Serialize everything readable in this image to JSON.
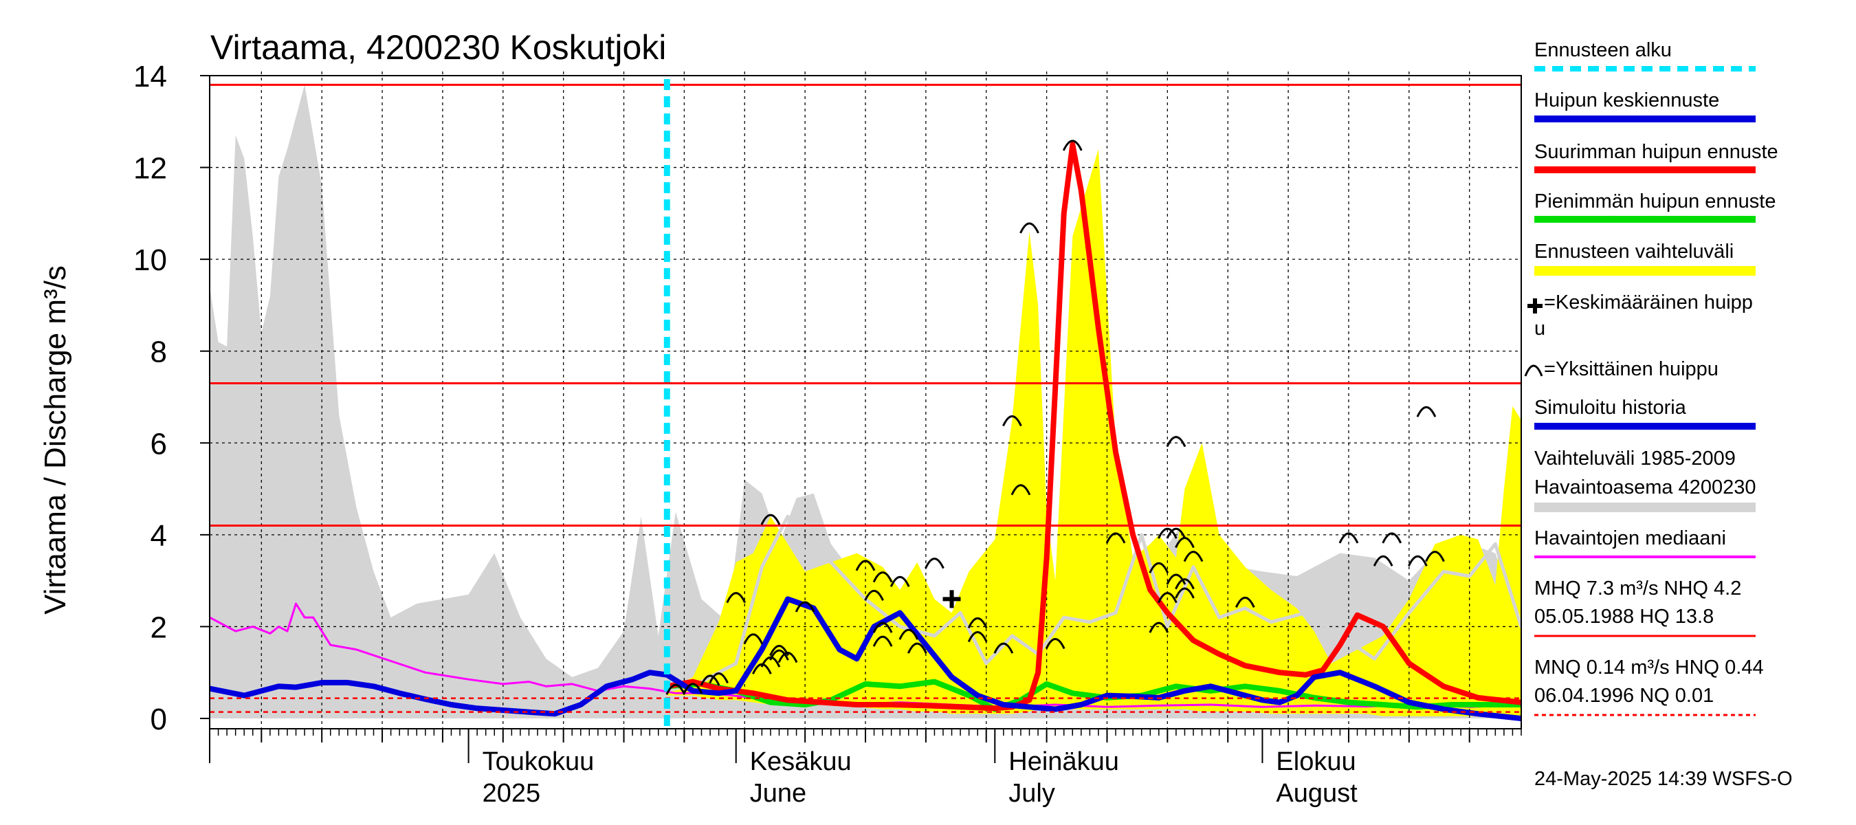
{
  "chart_data": {
    "type": "area",
    "title": "Virtaama, 4200230 Koskutjoki",
    "ylabel": "Virtaama / Discharge   m³/s",
    "ylim": [
      0,
      14
    ],
    "yticks": [
      "0",
      "2",
      "4",
      "6",
      "8",
      "10",
      "12",
      "14"
    ],
    "x_start": "2025-04-01",
    "x_end": "2025-08-31",
    "month_labels": [
      {
        "fi": "Toukokuu",
        "en": "2025",
        "date": "2025-05-01"
      },
      {
        "fi": "Kesäkuu",
        "en": "June",
        "date": "2025-06-01"
      },
      {
        "fi": "Heinäkuu",
        "en": "July",
        "date": "2025-07-01"
      },
      {
        "fi": "Elokuu",
        "en": "August",
        "date": "2025-08-01"
      }
    ],
    "forecast_start": "2025-05-24",
    "reference_lines": [
      {
        "name": "HQ",
        "value": 13.8,
        "style": "solid"
      },
      {
        "name": "MHQ",
        "value": 7.3,
        "style": "solid"
      },
      {
        "name": "NHQ",
        "value": 4.2,
        "style": "solid"
      },
      {
        "name": "HNQ",
        "value": 0.44,
        "style": "dashed"
      },
      {
        "name": "MNQ",
        "value": 0.14,
        "style": "dashed"
      }
    ],
    "series": [
      {
        "name": "Vaihteluväli 1985-2009",
        "kind": "band",
        "color": "#d4d4d4",
        "x": [
          "2025-04-01",
          "2025-04-02",
          "2025-04-03",
          "2025-04-04",
          "2025-04-05",
          "2025-04-06",
          "2025-04-07",
          "2025-04-08",
          "2025-04-09",
          "2025-04-10",
          "2025-04-12",
          "2025-04-14",
          "2025-04-16",
          "2025-04-18",
          "2025-04-20",
          "2025-04-22",
          "2025-04-25",
          "2025-04-28",
          "2025-05-01",
          "2025-05-04",
          "2025-05-07",
          "2025-05-10",
          "2025-05-13",
          "2025-05-16",
          "2025-05-19",
          "2025-05-21",
          "2025-05-23",
          "2025-05-25",
          "2025-05-28",
          "2025-05-31",
          "2025-06-02",
          "2025-06-04",
          "2025-06-06",
          "2025-06-08",
          "2025-06-10",
          "2025-06-12",
          "2025-06-14",
          "2025-06-17",
          "2025-06-20",
          "2025-06-23",
          "2025-06-26",
          "2025-06-29",
          "2025-07-02",
          "2025-07-05",
          "2025-07-10",
          "2025-07-15",
          "2025-07-20",
          "2025-07-23",
          "2025-07-26",
          "2025-07-29",
          "2025-08-01",
          "2025-08-05",
          "2025-08-10",
          "2025-08-14",
          "2025-08-18",
          "2025-08-20",
          "2025-08-22",
          "2025-08-25",
          "2025-08-28",
          "2025-08-31"
        ],
        "upper": [
          9.4,
          8.2,
          8.1,
          12.7,
          12.2,
          10.5,
          8.4,
          9.2,
          11.8,
          12.4,
          13.8,
          11.6,
          6.6,
          4.6,
          3.2,
          2.2,
          2.5,
          2.6,
          2.7,
          3.6,
          2.2,
          1.3,
          0.9,
          1.1,
          1.9,
          4.4,
          1.8,
          4.5,
          2.6,
          2.1,
          5.2,
          4.9,
          3.8,
          4.8,
          4.9,
          3.8,
          3.3,
          3.0,
          2.7,
          2.0,
          1.6,
          2.0,
          2.8,
          2.0,
          2.1,
          2.5,
          3.5,
          4.3,
          4.0,
          3.3,
          3.2,
          3.1,
          3.6,
          3.5,
          3.0,
          3.4,
          3.7,
          3.8,
          3.6,
          2.0
        ],
        "lower": [
          0,
          0,
          0,
          0,
          0,
          0,
          0,
          0,
          0,
          0,
          0,
          0,
          0,
          0,
          0,
          0,
          0,
          0,
          0,
          0,
          0,
          0,
          0,
          0,
          0,
          0,
          0,
          0,
          0,
          0,
          0,
          0,
          0,
          0,
          0,
          0,
          0,
          0,
          0,
          0,
          0,
          0,
          0,
          0,
          0,
          0,
          0,
          0,
          0,
          0,
          0,
          0,
          0,
          0,
          0,
          0,
          0,
          0,
          0,
          0
        ]
      },
      {
        "name": "Ennusteen vaihteluväli",
        "kind": "band",
        "color": "#ffff00",
        "x": [
          "2025-05-24",
          "2025-05-27",
          "2025-05-30",
          "2025-06-01",
          "2025-06-03",
          "2025-06-05",
          "2025-06-07",
          "2025-06-09",
          "2025-06-12",
          "2025-06-15",
          "2025-06-18",
          "2025-06-20",
          "2025-06-22",
          "2025-06-24",
          "2025-06-26",
          "2025-06-28",
          "2025-07-01",
          "2025-07-03",
          "2025-07-05",
          "2025-07-06",
          "2025-07-07",
          "2025-07-08",
          "2025-07-10",
          "2025-07-13",
          "2025-07-15",
          "2025-07-17",
          "2025-07-19",
          "2025-07-20",
          "2025-07-22",
          "2025-07-23",
          "2025-07-25",
          "2025-07-27",
          "2025-07-30",
          "2025-08-02",
          "2025-08-05",
          "2025-08-07",
          "2025-08-09",
          "2025-08-11",
          "2025-08-13",
          "2025-08-15",
          "2025-08-18",
          "2025-08-21",
          "2025-08-24",
          "2025-08-26",
          "2025-08-28",
          "2025-08-29",
          "2025-08-30",
          "2025-08-31"
        ],
        "upper": [
          0.6,
          0.9,
          2.1,
          3.4,
          3.6,
          4.4,
          3.8,
          3.2,
          3.4,
          3.6,
          3.3,
          2.8,
          3.4,
          2.6,
          2.3,
          3.2,
          3.9,
          6.5,
          10.6,
          9.0,
          4.5,
          3.0,
          10.5,
          12.4,
          6.0,
          3.5,
          3.8,
          4.0,
          3.5,
          5.0,
          6.0,
          4.0,
          3.3,
          2.8,
          2.4,
          1.9,
          1.2,
          1.4,
          1.6,
          1.8,
          2.6,
          3.8,
          4.0,
          3.9,
          2.9,
          5.0,
          6.8,
          6.5
        ],
        "lower": [
          0.5,
          0.5,
          0.4,
          0.4,
          0.35,
          0.3,
          0.3,
          0.3,
          0.3,
          0.25,
          0.2,
          0.2,
          0.15,
          0.15,
          0.1,
          0.1,
          0.1,
          0.1,
          0.15,
          0.2,
          0.2,
          0.2,
          0.2,
          0.2,
          0.2,
          0.2,
          0.2,
          0.2,
          0.2,
          0.2,
          0.15,
          0.15,
          0.15,
          0.1,
          0.1,
          0.1,
          0.1,
          0.1,
          0.1,
          0.05,
          0.05,
          0.05,
          0.05,
          0.05,
          0.05,
          0.05,
          0.05,
          0.05
        ]
      },
      {
        "name": "Vaihteluvälin mediaani",
        "kind": "line",
        "color": "#d4d4d4",
        "width": 5,
        "x": [
          "2025-05-24",
          "2025-05-28",
          "2025-06-01",
          "2025-06-04",
          "2025-06-07",
          "2025-06-09",
          "2025-06-12",
          "2025-06-16",
          "2025-06-20",
          "2025-06-24",
          "2025-06-27",
          "2025-06-30",
          "2025-07-03",
          "2025-07-06",
          "2025-07-09",
          "2025-07-12",
          "2025-07-15",
          "2025-07-18",
          "2025-07-21",
          "2025-07-24",
          "2025-07-27",
          "2025-07-30",
          "2025-08-02",
          "2025-08-06",
          "2025-08-10",
          "2025-08-14",
          "2025-08-18",
          "2025-08-22",
          "2025-08-25",
          "2025-08-28",
          "2025-08-31"
        ],
        "y": [
          0.6,
          0.8,
          1.2,
          3.3,
          4.4,
          3.6,
          3.4,
          2.6,
          2.0,
          1.8,
          2.3,
          1.2,
          1.8,
          1.4,
          2.2,
          2.1,
          2.3,
          4.0,
          2.0,
          3.3,
          2.2,
          2.4,
          2.1,
          2.3,
          1.8,
          1.3,
          2.3,
          3.2,
          3.1,
          3.8,
          2.0
        ]
      },
      {
        "name": "Havaintojen mediaani",
        "kind": "line",
        "color": "#ff00ff",
        "width": 3,
        "x": [
          "2025-04-01",
          "2025-04-04",
          "2025-04-06",
          "2025-04-08",
          "2025-04-09",
          "2025-04-10",
          "2025-04-11",
          "2025-04-12",
          "2025-04-13",
          "2025-04-15",
          "2025-04-18",
          "2025-04-22",
          "2025-04-26",
          "2025-05-01",
          "2025-05-05",
          "2025-05-08",
          "2025-05-10",
          "2025-05-13",
          "2025-05-16",
          "2025-05-19",
          "2025-05-22",
          "2025-05-25",
          "2025-05-29",
          "2025-06-03",
          "2025-06-08",
          "2025-06-14",
          "2025-06-20",
          "2025-06-26",
          "2025-07-02",
          "2025-07-08",
          "2025-07-14",
          "2025-07-20",
          "2025-07-26",
          "2025-08-01",
          "2025-08-07",
          "2025-08-13",
          "2025-08-19",
          "2025-08-25",
          "2025-08-31"
        ],
        "y": [
          2.2,
          1.9,
          2.0,
          1.85,
          2.0,
          1.9,
          2.5,
          2.2,
          2.2,
          1.6,
          1.5,
          1.25,
          1.0,
          0.85,
          0.75,
          0.8,
          0.7,
          0.75,
          0.6,
          0.7,
          0.65,
          0.55,
          0.55,
          0.45,
          0.35,
          0.3,
          0.35,
          0.3,
          0.25,
          0.3,
          0.25,
          0.28,
          0.3,
          0.25,
          0.28,
          0.26,
          0.3,
          0.25,
          0.3
        ]
      },
      {
        "name": "Pienimmän huipun ennuste",
        "kind": "line",
        "color": "#00dd00",
        "width": 8,
        "x": [
          "2025-05-24",
          "2025-05-28",
          "2025-06-01",
          "2025-06-05",
          "2025-06-09",
          "2025-06-12",
          "2025-06-16",
          "2025-06-20",
          "2025-06-24",
          "2025-06-28",
          "2025-07-01",
          "2025-07-04",
          "2025-07-07",
          "2025-07-10",
          "2025-07-14",
          "2025-07-18",
          "2025-07-22",
          "2025-07-26",
          "2025-07-30",
          "2025-08-03",
          "2025-08-07",
          "2025-08-11",
          "2025-08-15",
          "2025-08-19",
          "2025-08-23",
          "2025-08-27",
          "2025-08-31"
        ],
        "y": [
          0.7,
          0.75,
          0.6,
          0.35,
          0.3,
          0.4,
          0.75,
          0.7,
          0.8,
          0.5,
          0.2,
          0.4,
          0.75,
          0.55,
          0.45,
          0.5,
          0.7,
          0.6,
          0.7,
          0.6,
          0.45,
          0.35,
          0.3,
          0.25,
          0.3,
          0.3,
          0.3
        ]
      },
      {
        "name": "Suurimman huipun ennuste",
        "kind": "line",
        "color": "#ff0000",
        "width": 8,
        "x": [
          "2025-05-24",
          "2025-05-27",
          "2025-05-30",
          "2025-06-03",
          "2025-06-07",
          "2025-06-11",
          "2025-06-15",
          "2025-06-19",
          "2025-06-23",
          "2025-06-27",
          "2025-07-01",
          "2025-07-03",
          "2025-07-05",
          "2025-07-06",
          "2025-07-07",
          "2025-07-08",
          "2025-07-09",
          "2025-07-10",
          "2025-07-11",
          "2025-07-13",
          "2025-07-15",
          "2025-07-17",
          "2025-07-19",
          "2025-07-21",
          "2025-07-24",
          "2025-07-27",
          "2025-07-30",
          "2025-08-03",
          "2025-08-06",
          "2025-08-08",
          "2025-08-10",
          "2025-08-12",
          "2025-08-15",
          "2025-08-18",
          "2025-08-22",
          "2025-08-26",
          "2025-08-31"
        ],
        "y": [
          0.7,
          0.8,
          0.65,
          0.55,
          0.4,
          0.35,
          0.3,
          0.3,
          0.28,
          0.25,
          0.22,
          0.25,
          0.4,
          1.0,
          3.5,
          7.2,
          11.0,
          12.5,
          11.5,
          8.5,
          5.8,
          4.0,
          2.8,
          2.3,
          1.7,
          1.4,
          1.15,
          1.0,
          0.95,
          1.05,
          1.6,
          2.25,
          2.0,
          1.2,
          0.7,
          0.45,
          0.35
        ]
      },
      {
        "name": "Huipun keskiennuste",
        "kind": "line",
        "color": "#0000dd",
        "width": 8,
        "x": [
          "2025-04-01",
          "2025-04-05",
          "2025-04-09",
          "2025-04-11",
          "2025-04-14",
          "2025-04-17",
          "2025-04-20",
          "2025-04-23",
          "2025-04-26",
          "2025-04-29",
          "2025-05-02",
          "2025-05-05",
          "2025-05-08",
          "2025-05-11",
          "2025-05-14",
          "2025-05-17",
          "2025-05-20",
          "2025-05-22",
          "2025-05-24",
          "2025-05-27",
          "2025-05-30",
          "2025-06-01",
          "2025-06-04",
          "2025-06-07",
          "2025-06-10",
          "2025-06-13",
          "2025-06-15",
          "2025-06-17",
          "2025-06-20",
          "2025-06-23",
          "2025-06-26",
          "2025-06-29",
          "2025-07-02",
          "2025-07-05",
          "2025-07-08",
          "2025-07-11",
          "2025-07-14",
          "2025-07-17",
          "2025-07-20",
          "2025-07-23",
          "2025-07-26",
          "2025-07-29",
          "2025-08-01",
          "2025-08-03",
          "2025-08-05",
          "2025-08-07",
          "2025-08-10",
          "2025-08-14",
          "2025-08-18",
          "2025-08-22",
          "2025-08-26",
          "2025-08-31"
        ],
        "y": [
          0.65,
          0.5,
          0.7,
          0.68,
          0.78,
          0.78,
          0.7,
          0.55,
          0.42,
          0.3,
          0.22,
          0.18,
          0.14,
          0.1,
          0.3,
          0.7,
          0.85,
          1.0,
          0.95,
          0.6,
          0.55,
          0.6,
          1.5,
          2.6,
          2.4,
          1.5,
          1.3,
          2.0,
          2.3,
          1.6,
          0.9,
          0.5,
          0.3,
          0.25,
          0.2,
          0.3,
          0.5,
          0.48,
          0.45,
          0.6,
          0.7,
          0.55,
          0.4,
          0.35,
          0.5,
          0.9,
          1.0,
          0.7,
          0.35,
          0.2,
          0.1,
          0.0
        ]
      }
    ],
    "single_peaks": [
      {
        "x": "2025-05-25",
        "y": 0.7
      },
      {
        "x": "2025-05-27",
        "y": 0.72
      },
      {
        "x": "2025-05-29",
        "y": 0.9
      },
      {
        "x": "2025-05-30",
        "y": 0.95
      },
      {
        "x": "2025-06-01",
        "y": 2.7
      },
      {
        "x": "2025-06-03",
        "y": 1.8
      },
      {
        "x": "2025-06-04",
        "y": 1.15
      },
      {
        "x": "2025-06-05",
        "y": 4.4
      },
      {
        "x": "2025-06-05",
        "y": 1.3
      },
      {
        "x": "2025-06-06",
        "y": 1.55
      },
      {
        "x": "2025-06-06",
        "y": 1.45
      },
      {
        "x": "2025-06-07",
        "y": 1.4
      },
      {
        "x": "2025-06-09",
        "y": 2.5
      },
      {
        "x": "2025-06-16",
        "y": 3.4
      },
      {
        "x": "2025-06-17",
        "y": 2.75
      },
      {
        "x": "2025-06-18",
        "y": 3.15
      },
      {
        "x": "2025-06-18",
        "y": 2.05
      },
      {
        "x": "2025-06-18",
        "y": 1.75
      },
      {
        "x": "2025-06-20",
        "y": 3.05
      },
      {
        "x": "2025-06-21",
        "y": 1.9
      },
      {
        "x": "2025-06-22",
        "y": 1.6
      },
      {
        "x": "2025-06-24",
        "y": 3.45
      },
      {
        "x": "2025-06-29",
        "y": 2.15
      },
      {
        "x": "2025-06-29",
        "y": 1.85
      },
      {
        "x": "2025-07-02",
        "y": 1.6
      },
      {
        "x": "2025-07-03",
        "y": 6.55
      },
      {
        "x": "2025-07-04",
        "y": 5.05
      },
      {
        "x": "2025-07-05",
        "y": 10.75
      },
      {
        "x": "2025-07-08",
        "y": 1.7
      },
      {
        "x": "2025-07-10",
        "y": 12.55
      },
      {
        "x": "2025-07-15",
        "y": 4.0
      },
      {
        "x": "2025-07-20",
        "y": 3.35
      },
      {
        "x": "2025-07-20",
        "y": 2.05
      },
      {
        "x": "2025-07-21",
        "y": 4.1
      },
      {
        "x": "2025-07-21",
        "y": 2.7
      },
      {
        "x": "2025-07-22",
        "y": 6.1
      },
      {
        "x": "2025-07-22",
        "y": 4.1
      },
      {
        "x": "2025-07-22",
        "y": 3.1
      },
      {
        "x": "2025-07-23",
        "y": 3.9
      },
      {
        "x": "2025-07-23",
        "y": 3.0
      },
      {
        "x": "2025-07-24",
        "y": 3.6
      },
      {
        "x": "2025-07-23",
        "y": 2.8
      },
      {
        "x": "2025-07-30",
        "y": 2.6
      },
      {
        "x": "2025-08-11",
        "y": 4.0
      },
      {
        "x": "2025-08-15",
        "y": 3.5
      },
      {
        "x": "2025-08-16",
        "y": 4.0
      },
      {
        "x": "2025-08-19",
        "y": 3.5
      },
      {
        "x": "2025-08-20",
        "y": 6.75
      },
      {
        "x": "2025-08-21",
        "y": 3.6
      }
    ],
    "mean_peak": {
      "x": "2025-06-26",
      "y": 2.6
    }
  },
  "legend": {
    "ennusteen_alku": "Ennusteen alku",
    "huipun_keskiennuste": "Huipun keskiennuste",
    "suurimman": "Suurimman huipun ennuste",
    "pienimman": "Pienimmän huipun ennuste",
    "vaihteluvali": "Ennusteen vaihteluväli",
    "keskimaarainen_1": "=Keskimääräinen huipp",
    "keskimaarainen_2": "u",
    "yksittainen": "=Yksittäinen huippu",
    "simuloitu": "Simuloitu historia",
    "vaihteluvali_hist": "Vaihteluväli 1985-2009",
    "havaintoasema": " Havaintoasema 4200230",
    "havaintojen_mediaani": "Havaintojen mediaani",
    "mhq_line": "MHQ  7.3 m³/s NHQ  4.2",
    "hq_line": "05.05.1988 HQ 13.8",
    "mnq_line": "MNQ 0.14 m³/s HNQ 0.44",
    "nq_line": "06.04.1996 NQ 0.01",
    "colors": {
      "forecast_start": "#00e5ff",
      "mean_peak_forecast": "#0000dd",
      "max_peak_forecast": "#ff0000",
      "min_peak_forecast": "#00dd00",
      "forecast_range": "#ffff00",
      "simulated_history": "#0000dd",
      "historical_range": "#d4d4d4",
      "observed_median": "#ff00ff",
      "reference_solid": "#ff0000",
      "reference_dashed": "#ff0000"
    }
  },
  "footer": {
    "timestamp": "24-May-2025 14:39 WSFS-O"
  }
}
